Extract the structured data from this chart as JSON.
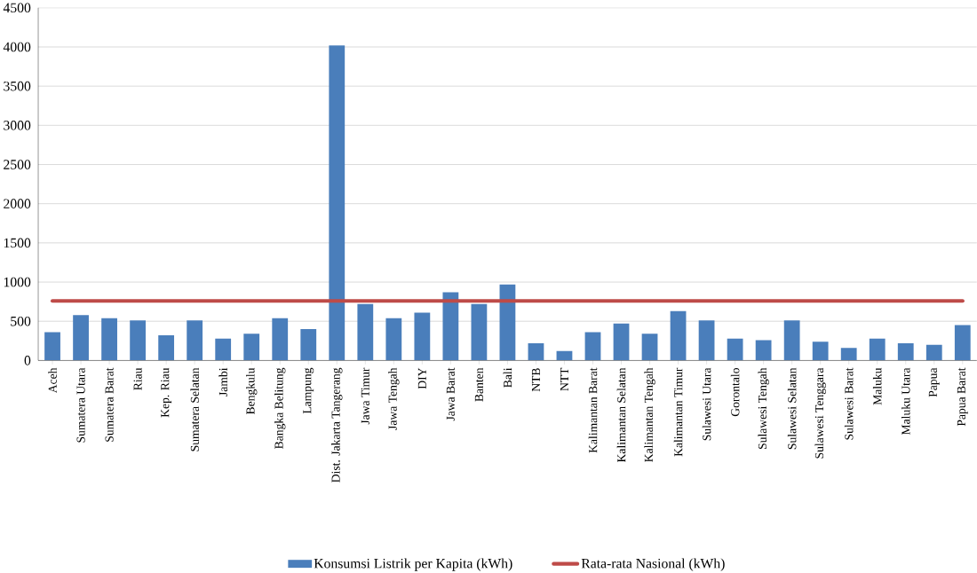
{
  "chart_data": {
    "type": "bar",
    "categories": [
      "Aceh",
      "Sumatera Utara",
      "Sumatera Barat",
      "Riau",
      "Kep. Riau",
      "Sumatera Selatan",
      "Jambi",
      "Bengkulu",
      "Bangka Belitung",
      "Lampung",
      "Dist. Jakarta Tangerang",
      "Jawa Timur",
      "Jawa Tengah",
      "DIY",
      "Jawa Barat",
      "Banten",
      "Bali",
      "NTB",
      "NTT",
      "Kalimantan Barat",
      "Kalimantan Selatan",
      "Kalimantan Tengah",
      "Kalimantan Timur",
      "Sulawesi Utara",
      "Gorontalo",
      "Sulawesi Tengah",
      "Sulawesi Selatan",
      "Sulawesi Tenggara",
      "Sulawesi Barat",
      "Maluku",
      "Maluku Utara",
      "Papua",
      "Papua Barat"
    ],
    "series": [
      {
        "name": "Konsumsi Listrik per Kapita (kWh)",
        "color": "#4a7ebb",
        "values": [
          360,
          580,
          540,
          510,
          320,
          510,
          280,
          340,
          540,
          400,
          4020,
          720,
          540,
          610,
          870,
          720,
          970,
          220,
          120,
          360,
          470,
          340,
          630,
          510,
          280,
          260,
          510,
          240,
          160,
          280,
          220,
          200,
          450
        ]
      },
      {
        "name": "Rata-rata Nasional (kWh)",
        "type": "line",
        "color": "#be4b48",
        "values": [
          760,
          760,
          760,
          760,
          760,
          760,
          760,
          760,
          760,
          760,
          760,
          760,
          760,
          760,
          760,
          760,
          760,
          760,
          760,
          760,
          760,
          760,
          760,
          760,
          760,
          760,
          760,
          760,
          760,
          760,
          760,
          760,
          760
        ]
      }
    ],
    "ylim": [
      0,
      4500
    ],
    "yticks": [
      0,
      500,
      1000,
      1500,
      2000,
      2500,
      3000,
      3500,
      4000,
      4500
    ],
    "grid": "y",
    "legend": "bottom"
  }
}
